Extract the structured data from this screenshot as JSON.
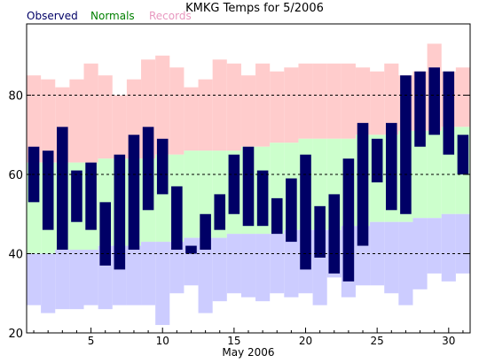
{
  "chart_data": {
    "type": "bar",
    "title": "KMKG Temps for 5/2006",
    "xlabel": "May 2006",
    "ylabel": "",
    "xlim": [
      0.5,
      31.5
    ],
    "ylim": [
      20,
      98
    ],
    "x_ticks": [
      5,
      10,
      15,
      20,
      25,
      30
    ],
    "y_ticks": [
      20,
      40,
      60,
      80
    ],
    "grid": "dashed horizontal at 40, 60, 80",
    "legend_position": "top-left",
    "days": [
      1,
      2,
      3,
      4,
      5,
      6,
      7,
      8,
      9,
      10,
      11,
      12,
      13,
      14,
      15,
      16,
      17,
      18,
      19,
      20,
      21,
      22,
      23,
      24,
      25,
      26,
      27,
      28,
      29,
      30,
      31
    ],
    "series": [
      {
        "name": "Records",
        "color": "#ffcccc",
        "low": [
          85,
          84,
          82,
          84,
          88,
          85,
          80,
          84,
          89,
          90,
          87,
          82,
          84,
          89,
          88,
          85,
          88,
          86,
          87,
          88,
          88,
          88,
          88,
          87,
          86,
          88,
          85,
          86,
          93,
          86,
          87
        ],
        "high": [
          85,
          84,
          82,
          84,
          88,
          85,
          80,
          84,
          89,
          90,
          87,
          82,
          84,
          89,
          88,
          85,
          88,
          86,
          87,
          88,
          88,
          88,
          88,
          87,
          86,
          88,
          85,
          86,
          93,
          86,
          87
        ],
        "record_low": [
          27,
          25,
          26,
          26,
          27,
          26,
          27,
          27,
          27,
          22,
          30,
          32,
          25,
          28,
          30,
          29,
          28,
          30,
          29,
          30,
          27,
          34,
          29,
          32,
          32,
          30,
          27,
          31,
          35,
          33,
          35
        ]
      },
      {
        "name": "Normals",
        "color": "#ccffcc",
        "low": [
          40,
          40,
          41,
          41,
          41,
          42,
          42,
          42,
          43,
          43,
          43,
          44,
          44,
          44,
          45,
          45,
          45,
          45,
          46,
          46,
          46,
          46,
          47,
          47,
          48,
          48,
          48,
          49,
          49,
          50,
          50
        ],
        "high": [
          63,
          63,
          63,
          63,
          63,
          64,
          64,
          64,
          64,
          65,
          65,
          66,
          66,
          66,
          66,
          67,
          67,
          68,
          68,
          69,
          69,
          69,
          69,
          70,
          70,
          70,
          71,
          71,
          71,
          72,
          72
        ]
      },
      {
        "name": "Observed",
        "color": "#000066",
        "low": [
          53,
          46,
          41,
          48,
          46,
          37,
          36,
          41,
          51,
          55,
          41,
          40,
          41,
          46,
          50,
          47,
          47,
          45,
          43,
          36,
          39,
          35,
          33,
          42,
          58,
          51,
          50,
          67,
          70,
          65,
          60
        ],
        "high": [
          67,
          66,
          72,
          61,
          63,
          53,
          65,
          70,
          72,
          69,
          57,
          42,
          50,
          55,
          65,
          67,
          61,
          54,
          59,
          65,
          52,
          55,
          64,
          73,
          69,
          73,
          85,
          86,
          87,
          86,
          70
        ]
      }
    ]
  }
}
